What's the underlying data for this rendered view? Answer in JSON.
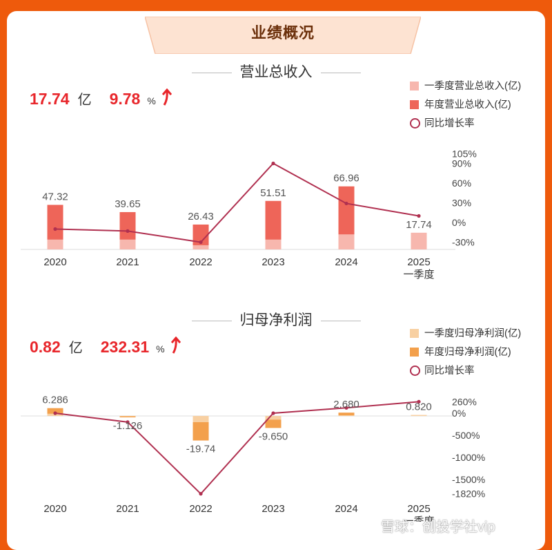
{
  "header": {
    "title": "业绩概况"
  },
  "revenue": {
    "title": "营业总收入",
    "kpi_value": "17.74",
    "kpi_unit": "亿",
    "kpi_growth": "9.78",
    "kpi_growth_unit": "%",
    "legend": [
      "一季度营业总收入(亿)",
      "年度营业总收入(亿)",
      "同比增长率"
    ]
  },
  "profit": {
    "title": "归母净利润",
    "kpi_value": "0.82",
    "kpi_unit": "亿",
    "kpi_growth": "232.31",
    "kpi_growth_unit": "%",
    "legend": [
      "一季度归母净利润(亿)",
      "年度归母净利润(亿)",
      "同比增长率"
    ]
  },
  "colors": {
    "background": "#ee5a0c",
    "revenue_annual": "#ee6559",
    "revenue_q1": "#f7b7ae",
    "profit_annual": "#f3a04c",
    "profit_q1": "#f8d0a2",
    "growth_line": "#b03050",
    "kpi_red": "#e8262b"
  },
  "chart_data": [
    {
      "type": "bar",
      "title": "营业总收入",
      "categories": [
        "2020",
        "2021",
        "2022",
        "2023",
        "2024",
        "2025\n一季度"
      ],
      "series": [
        {
          "name": "年度营业总收入(亿)",
          "values": [
            47.32,
            39.65,
            26.43,
            51.51,
            66.96,
            null
          ]
        },
        {
          "name": "一季度营业总收入(亿)",
          "values": [
            10.5,
            10.5,
            4.5,
            10.5,
            16.0,
            17.74
          ]
        },
        {
          "name": "同比增长率",
          "type": "line",
          "axis": "right",
          "values": [
            -10,
            -13,
            -30,
            90,
            29,
            10
          ]
        }
      ],
      "data_labels": [
        "47.32",
        "39.65",
        "26.43",
        "51.51",
        "66.96",
        "17.74"
      ],
      "ylim_right": [
        -30,
        105
      ],
      "right_ticks": [
        "105%",
        "90%",
        "60%",
        "30%",
        "0%",
        "-30%"
      ]
    },
    {
      "type": "bar",
      "title": "归母净利润",
      "categories": [
        "2020",
        "2021",
        "2022",
        "2023",
        "2024",
        "2025\n一季度"
      ],
      "series": [
        {
          "name": "年度归母净利润(亿)",
          "values": [
            6.286,
            -1.126,
            -19.74,
            -9.65,
            2.68,
            null
          ]
        },
        {
          "name": "一季度归母净利润(亿)",
          "values": [
            1.8,
            -0.3,
            -5.0,
            -3.0,
            0.5,
            0.82
          ]
        },
        {
          "name": "同比增长率",
          "type": "line",
          "axis": "right",
          "values": [
            0,
            -200,
            -1820,
            0,
            120,
            260
          ]
        }
      ],
      "data_labels": [
        "6.286",
        "-1.126",
        "-19.74",
        "-9.650",
        "2.680",
        "0.820"
      ],
      "ylim_right": [
        -1820,
        260
      ],
      "right_ticks": [
        "260%",
        "0%",
        "-500%",
        "-1000%",
        "-1500%",
        "-1820%"
      ]
    }
  ],
  "watermark": "雪球：创投学社vip"
}
